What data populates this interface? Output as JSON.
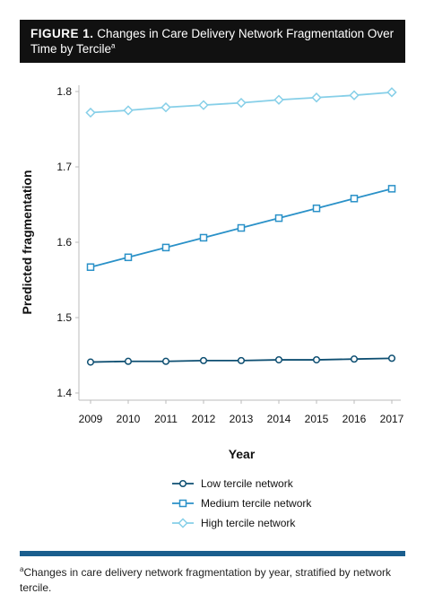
{
  "figure": {
    "label": "FIGURE 1.",
    "title": "Changes in Care Delivery Network Fragmentation Over Time by Tercile",
    "title_line1_rest": "Changes in Care Delivery Network Fragmentation Over",
    "title_line2": "Time by Tercile",
    "title_superscript": "a"
  },
  "footnote": {
    "marker": "a",
    "text": "Changes in care delivery network fragmentation by year, stratified by network tercile."
  },
  "colors": {
    "title_bg": "#111111",
    "footer_bar": "#1a5e8e",
    "low": "#0e4f72",
    "medium": "#2a91c8",
    "high": "#86cfe8"
  },
  "chart_data": {
    "type": "line",
    "title": "Changes in Care Delivery Network Fragmentation Over Time by Tercile",
    "xlabel": "Year",
    "ylabel": "Predicted fragmentation",
    "x": [
      "2009",
      "2010",
      "2011",
      "2012",
      "2013",
      "2014",
      "2015",
      "2016",
      "2017"
    ],
    "ylim": [
      1.4,
      1.8
    ],
    "yticks": [
      "1.4",
      "1.5",
      "1.6",
      "1.7",
      "1.8"
    ],
    "grid": false,
    "legend_position": "bottom",
    "series": [
      {
        "name": "Low tercile network",
        "marker": "circle",
        "color": "#0e4f72",
        "values": [
          1.441,
          1.442,
          1.442,
          1.443,
          1.443,
          1.444,
          1.444,
          1.445,
          1.446
        ]
      },
      {
        "name": "Medium tercile network",
        "marker": "square",
        "color": "#2a91c8",
        "values": [
          1.567,
          1.58,
          1.593,
          1.606,
          1.619,
          1.632,
          1.645,
          1.658,
          1.671
        ]
      },
      {
        "name": "High tercile network",
        "marker": "diamond",
        "color": "#86cfe8",
        "values": [
          1.772,
          1.775,
          1.779,
          1.782,
          1.785,
          1.789,
          1.792,
          1.795,
          1.799
        ]
      }
    ]
  }
}
